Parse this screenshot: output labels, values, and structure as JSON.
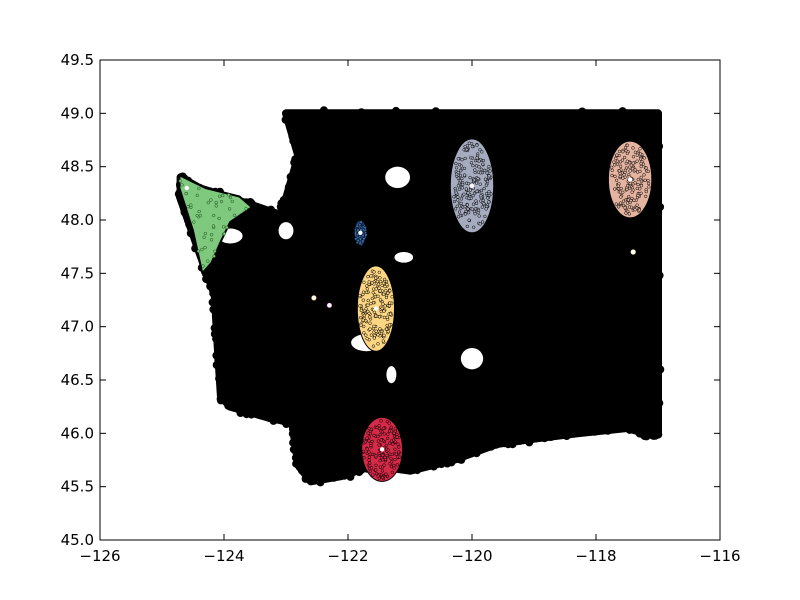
{
  "chart_data": {
    "type": "scatter",
    "title": "",
    "xlabel": "",
    "ylabel": "",
    "xlim": [
      -126,
      -116
    ],
    "ylim": [
      45.0,
      49.5
    ],
    "grid": false,
    "legend": "none",
    "x_ticks": [
      -126,
      -124,
      -122,
      -120,
      -118,
      -116
    ],
    "x_tick_labels": [
      "−126",
      "−124",
      "−122",
      "−120",
      "−118",
      "−116"
    ],
    "y_ticks": [
      45.0,
      45.5,
      46.0,
      46.5,
      47.0,
      47.5,
      48.0,
      48.5,
      49.0,
      49.5
    ],
    "y_tick_labels": [
      "45.0",
      "45.5",
      "46.0",
      "46.5",
      "47.0",
      "47.5",
      "48.0",
      "48.5",
      "49.0",
      "49.5"
    ],
    "background_points": {
      "color": "#000000",
      "outline": [
        [
          -123.0,
          49.0
        ],
        [
          -117.0,
          49.0
        ],
        [
          -117.0,
          46.0
        ],
        [
          -117.2,
          46.0
        ],
        [
          -117.5,
          46.05
        ],
        [
          -118.3,
          46.0
        ],
        [
          -119.0,
          45.95
        ],
        [
          -119.6,
          45.9
        ],
        [
          -120.3,
          45.75
        ],
        [
          -121.0,
          45.65
        ],
        [
          -121.6,
          45.7
        ],
        [
          -122.1,
          45.6
        ],
        [
          -122.6,
          45.55
        ],
        [
          -122.8,
          45.7
        ],
        [
          -122.9,
          46.1
        ],
        [
          -123.3,
          46.15
        ],
        [
          -123.9,
          46.25
        ],
        [
          -124.05,
          46.35
        ],
        [
          -124.1,
          46.8
        ],
        [
          -124.15,
          47.3
        ],
        [
          -124.4,
          47.7
        ],
        [
          -124.7,
          48.2
        ],
        [
          -124.7,
          48.4
        ],
        [
          -124.4,
          48.3
        ],
        [
          -123.6,
          48.15
        ],
        [
          -123.1,
          48.05
        ],
        [
          -123.0,
          48.2
        ],
        [
          -122.8,
          48.6
        ],
        [
          -123.0,
          49.0
        ]
      ],
      "holes": [
        {
          "x": -120.0,
          "y": 48.1,
          "rx": 0.3,
          "ry": 0.12
        },
        {
          "x": -121.7,
          "y": 46.85,
          "rx": 0.25,
          "ry": 0.08
        },
        {
          "x": -120.0,
          "y": 46.7,
          "rx": 0.18,
          "ry": 0.1
        },
        {
          "x": -123.9,
          "y": 47.85,
          "rx": 0.2,
          "ry": 0.07
        },
        {
          "x": -121.2,
          "y": 48.4,
          "rx": 0.2,
          "ry": 0.1
        },
        {
          "x": -123.0,
          "y": 47.9,
          "rx": 0.12,
          "ry": 0.08
        },
        {
          "x": -121.1,
          "y": 47.65,
          "rx": 0.15,
          "ry": 0.05
        },
        {
          "x": -121.3,
          "y": 46.55,
          "rx": 0.08,
          "ry": 0.08
        }
      ]
    },
    "clusters": [
      {
        "color": "#7fc97f",
        "center_x": -124.6,
        "center_y": 48.3,
        "shape": "region",
        "outline": [
          [
            -124.72,
            48.42
          ],
          [
            -124.3,
            48.3
          ],
          [
            -123.75,
            48.22
          ],
          [
            -123.55,
            48.12
          ],
          [
            -123.9,
            47.98
          ],
          [
            -124.05,
            47.8
          ],
          [
            -124.2,
            47.6
          ],
          [
            -124.35,
            47.5
          ],
          [
            -124.5,
            47.9
          ],
          [
            -124.72,
            48.3
          ]
        ]
      },
      {
        "color": "#386cb0",
        "center_x": -121.8,
        "center_y": 47.88,
        "shape": "ellipse",
        "rx": 0.1,
        "ry": 0.12
      },
      {
        "color": "#a6acbf",
        "center_x": -120.0,
        "center_y": 48.32,
        "shape": "ellipse",
        "rx": 0.35,
        "ry": 0.44
      },
      {
        "color": "#e4b4a0",
        "center_x": -117.45,
        "center_y": 48.38,
        "shape": "ellipse",
        "rx": 0.35,
        "ry": 0.36
      },
      {
        "color": "#fdd683",
        "center_x": -121.55,
        "center_y": 47.17,
        "shape": "ellipse",
        "rx": 0.3,
        "ry": 0.4
      },
      {
        "color": "#d62a48",
        "center_x": -121.45,
        "center_y": 45.85,
        "shape": "ellipse",
        "rx": 0.33,
        "ry": 0.3
      },
      {
        "color": "#f5a623",
        "center_x": -122.55,
        "center_y": 47.27,
        "shape": "point"
      },
      {
        "color": "#e040c0",
        "center_x": -122.3,
        "center_y": 47.2,
        "shape": "point"
      },
      {
        "color": "#f3f3a0",
        "center_x": -117.4,
        "center_y": 47.7,
        "shape": "point"
      }
    ]
  }
}
